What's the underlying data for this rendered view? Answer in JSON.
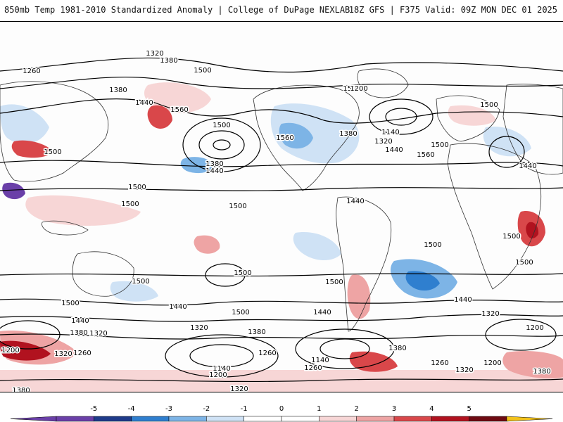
{
  "header": {
    "title": "850mb Temp 1981-2010 Standardized Anomaly | College of DuPage NEXLAB",
    "run_info": "18Z GFS | F375 Valid: 09Z MON DEC 01 2025"
  },
  "colors": {
    "contour": "#000000",
    "land_border": "#333333",
    "neg5": "#6a3fa8",
    "neg4": "#1e3a8a",
    "neg3": "#2f7fcf",
    "neg2": "#7db4e6",
    "neg1": "#cfe2f5",
    "pos1": "#f7d6d6",
    "pos2": "#eea4a4",
    "pos3": "#d9474a",
    "pos4": "#b1121f",
    "pos5": "#6e0a12",
    "over": "#f2c21b"
  },
  "colorbar": {
    "ticks": [
      "-5",
      "-4",
      "-3",
      "-2",
      "-1",
      "0",
      "1",
      "2",
      "3",
      "4",
      "5"
    ]
  },
  "contour_labels": [
    "1320",
    "1380",
    "1260",
    "1500",
    "1380",
    "1500",
    "1440",
    "1560",
    "1500",
    "1200",
    "1560",
    "1380",
    "1140",
    "1320",
    "1440",
    "1560",
    "1500",
    "1500",
    "1440",
    "1500",
    "1380",
    "1440",
    "1500",
    "1500",
    "1500",
    "1440",
    "1500",
    "1500",
    "1500",
    "1500",
    "1500",
    "1500",
    "1500",
    "1440",
    "1500",
    "1440",
    "1380",
    "1320",
    "1440",
    "1440",
    "1320",
    "1200",
    "1200",
    "1320",
    "1260",
    "1320",
    "1380",
    "1260",
    "1140",
    "1200",
    "1320",
    "1140",
    "1260",
    "1380",
    "1260",
    "1320",
    "1380",
    "1380",
    "1200"
  ]
}
